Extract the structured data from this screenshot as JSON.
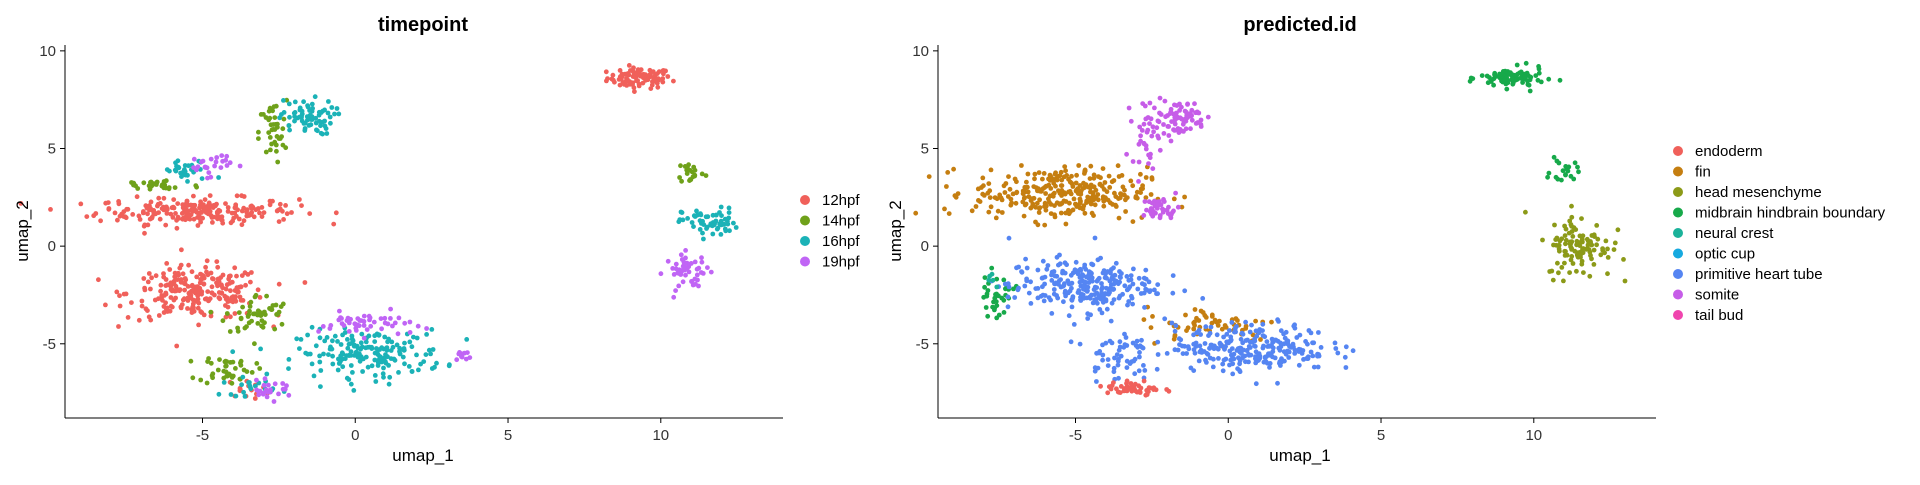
{
  "colors": {
    "12hpf": "#F0605A",
    "14hpf": "#6FA11A",
    "16hpf": "#1BB2B7",
    "19hpf": "#C065F5",
    "endoderm": "#F0605A",
    "fin": "#C57E10",
    "head mesenchyme": "#8C9A18",
    "midbrain hindbrain boundary": "#17A94A",
    "neural crest": "#1BB29A",
    "optic cup": "#16A9DF",
    "primitive heart tube": "#5585F2",
    "somite": "#C65DE8",
    "tail bud": "#F045AE"
  },
  "chart_data": [
    {
      "type": "scatter",
      "title": "timepoint",
      "xlabel": "umap_1",
      "ylabel": "umap_2",
      "xlim": [
        -9.5,
        14
      ],
      "ylim": [
        -8.8,
        10.3
      ],
      "xticks": [
        -5,
        0,
        5,
        10
      ],
      "yticks": [
        -5,
        0,
        5,
        10
      ],
      "grid": false,
      "legend_position": "right",
      "legend": [
        "12hpf",
        "14hpf",
        "16hpf",
        "19hpf"
      ],
      "clusters": [
        {
          "group": "12hpf",
          "cx": 9.3,
          "cy": 8.6,
          "sx": 0.7,
          "sy": 0.35,
          "n": 90
        },
        {
          "group": "12hpf",
          "cx": -5.2,
          "cy": 1.8,
          "sx": 2.2,
          "sy": 0.45,
          "n": 220
        },
        {
          "group": "12hpf",
          "cx": -5.2,
          "cy": -2.4,
          "sx": 1.5,
          "sy": 0.9,
          "n": 240
        },
        {
          "group": "12hpf",
          "cx": -3.5,
          "cy": -7.3,
          "sx": 0.5,
          "sy": 0.3,
          "n": 15
        },
        {
          "group": "14hpf",
          "cx": -2.7,
          "cy": 5.8,
          "sx": 0.3,
          "sy": 1.1,
          "n": 40
        },
        {
          "group": "14hpf",
          "cx": -6.5,
          "cy": 3.1,
          "sx": 1.0,
          "sy": 0.25,
          "n": 30
        },
        {
          "group": "14hpf",
          "cx": 11.0,
          "cy": 3.8,
          "sx": 0.3,
          "sy": 0.4,
          "n": 20
        },
        {
          "group": "14hpf",
          "cx": -3.2,
          "cy": -3.5,
          "sx": 0.7,
          "sy": 0.7,
          "n": 50
        },
        {
          "group": "14hpf",
          "cx": -4.2,
          "cy": -6.3,
          "sx": 0.6,
          "sy": 0.5,
          "n": 40
        },
        {
          "group": "16hpf",
          "cx": -1.6,
          "cy": 6.6,
          "sx": 0.6,
          "sy": 0.6,
          "n": 70
        },
        {
          "group": "16hpf",
          "cx": 11.6,
          "cy": 1.2,
          "sx": 0.6,
          "sy": 0.5,
          "n": 60
        },
        {
          "group": "16hpf",
          "cx": -5.5,
          "cy": 3.8,
          "sx": 0.6,
          "sy": 0.4,
          "n": 30
        },
        {
          "group": "16hpf",
          "cx": 0.5,
          "cy": -5.5,
          "sx": 1.6,
          "sy": 0.8,
          "n": 180
        },
        {
          "group": "16hpf",
          "cx": -3.5,
          "cy": -7.2,
          "sx": 0.6,
          "sy": 0.3,
          "n": 20
        },
        {
          "group": "19hpf",
          "cx": 10.9,
          "cy": -1.3,
          "sx": 0.5,
          "sy": 0.6,
          "n": 50
        },
        {
          "group": "19hpf",
          "cx": -4.8,
          "cy": 4.2,
          "sx": 0.5,
          "sy": 0.4,
          "n": 25
        },
        {
          "group": "19hpf",
          "cx": 0.3,
          "cy": -4.0,
          "sx": 1.0,
          "sy": 0.4,
          "n": 50
        },
        {
          "group": "19hpf",
          "cx": 3.5,
          "cy": -5.6,
          "sx": 0.2,
          "sy": 0.2,
          "n": 10
        },
        {
          "group": "19hpf",
          "cx": -2.8,
          "cy": -7.4,
          "sx": 0.5,
          "sy": 0.3,
          "n": 25
        }
      ]
    },
    {
      "type": "scatter",
      "title": "predicted.id",
      "xlabel": "umap_1",
      "ylabel": "umap_2",
      "xlim": [
        -9.5,
        14
      ],
      "ylim": [
        -8.8,
        10.3
      ],
      "xticks": [
        -5,
        0,
        5,
        10
      ],
      "yticks": [
        -5,
        0,
        5,
        10
      ],
      "grid": false,
      "legend_position": "right",
      "legend": [
        "endoderm",
        "fin",
        "head mesenchyme",
        "midbrain hindbrain boundary",
        "neural crest",
        "optic cup",
        "primitive heart tube",
        "somite",
        "tail bud"
      ],
      "clusters": [
        {
          "group": "midbrain hindbrain boundary",
          "cx": 9.3,
          "cy": 8.6,
          "sx": 0.7,
          "sy": 0.35,
          "n": 90
        },
        {
          "group": "midbrain hindbrain boundary",
          "cx": 11.0,
          "cy": 3.8,
          "sx": 0.3,
          "sy": 0.4,
          "n": 20
        },
        {
          "group": "midbrain hindbrain boundary",
          "cx": -7.6,
          "cy": -2.5,
          "sx": 0.4,
          "sy": 0.7,
          "n": 35
        },
        {
          "group": "fin",
          "cx": -5.5,
          "cy": 2.7,
          "sx": 1.9,
          "sy": 0.9,
          "n": 300
        },
        {
          "group": "fin",
          "cx": -0.5,
          "cy": -4.0,
          "sx": 1.5,
          "sy": 0.6,
          "n": 60
        },
        {
          "group": "head mesenchyme",
          "cx": 11.5,
          "cy": 0.0,
          "sx": 0.7,
          "sy": 1.1,
          "n": 110
        },
        {
          "group": "somite",
          "cx": -1.6,
          "cy": 6.6,
          "sx": 0.6,
          "sy": 0.6,
          "n": 70
        },
        {
          "group": "somite",
          "cx": -2.7,
          "cy": 5.8,
          "sx": 0.3,
          "sy": 1.1,
          "n": 40
        },
        {
          "group": "somite",
          "cx": -2.2,
          "cy": 1.9,
          "sx": 0.4,
          "sy": 0.4,
          "n": 40
        },
        {
          "group": "primitive heart tube",
          "cx": -4.8,
          "cy": -2.0,
          "sx": 1.6,
          "sy": 0.9,
          "n": 260
        },
        {
          "group": "primitive heart tube",
          "cx": 0.8,
          "cy": -5.2,
          "sx": 1.7,
          "sy": 0.8,
          "n": 260
        },
        {
          "group": "primitive heart tube",
          "cx": -3.6,
          "cy": -5.5,
          "sx": 0.7,
          "sy": 0.9,
          "n": 60
        },
        {
          "group": "endoderm",
          "cx": -3.1,
          "cy": -7.3,
          "sx": 0.6,
          "sy": 0.3,
          "n": 45
        },
        {
          "group": "neural crest",
          "cx": -7.7,
          "cy": -1.9,
          "sx": 0.2,
          "sy": 0.3,
          "n": 5
        }
      ]
    }
  ]
}
